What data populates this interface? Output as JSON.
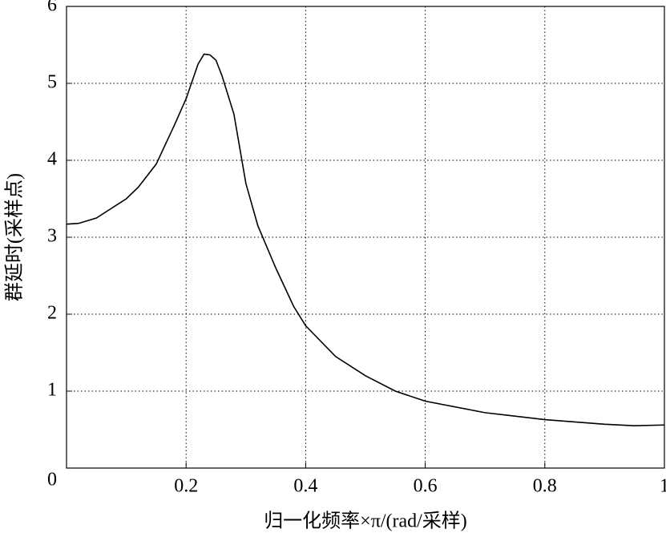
{
  "chart_data": {
    "type": "line",
    "xlabel": "归一化频率×π/(rad/采样)",
    "ylabel": "群延时(采样点)",
    "x": [
      0,
      0.02,
      0.05,
      0.1,
      0.12,
      0.15,
      0.18,
      0.2,
      0.22,
      0.23,
      0.24,
      0.25,
      0.26,
      0.28,
      0.3,
      0.32,
      0.35,
      0.38,
      0.4,
      0.45,
      0.5,
      0.55,
      0.6,
      0.7,
      0.8,
      0.9,
      0.95,
      1
    ],
    "series": [
      {
        "color": "#000000",
        "values": [
          3.17,
          3.18,
          3.25,
          3.5,
          3.65,
          3.95,
          4.45,
          4.8,
          5.25,
          5.38,
          5.37,
          5.3,
          5.1,
          4.6,
          3.7,
          3.15,
          2.6,
          2.1,
          1.85,
          1.45,
          1.2,
          1.0,
          0.87,
          0.72,
          0.63,
          0.57,
          0.55,
          0.56
        ]
      }
    ],
    "xlim": [
      0,
      1
    ],
    "xticks": [
      0.2,
      0.4,
      0.6,
      0.8,
      1
    ],
    "ylim": [
      0,
      6
    ],
    "yticks": [
      0,
      1,
      2,
      3,
      4,
      5,
      6
    ],
    "grid": true
  }
}
